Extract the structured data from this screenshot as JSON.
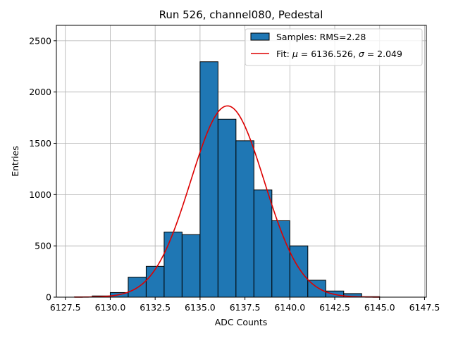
{
  "chart_data": {
    "type": "histogram",
    "title": "Run 526, channel080, Pedestal",
    "xlabel": "ADC Counts",
    "ylabel": "Entries",
    "xlim": [
      6127.0,
      6147.6
    ],
    "ylim": [
      0,
      2650
    ],
    "xticks": [
      6127.5,
      6130.0,
      6132.5,
      6135.0,
      6137.5,
      6140.0,
      6142.5,
      6145.0,
      6147.5
    ],
    "xtick_labels": [
      "6127.5",
      "6130.0",
      "6132.5",
      "6135.0",
      "6137.5",
      "6140.0",
      "6142.5",
      "6145.0",
      "6147.5"
    ],
    "yticks": [
      0,
      500,
      1000,
      1500,
      2000,
      2500
    ],
    "ytick_labels": [
      "0",
      "500",
      "1000",
      "1500",
      "2000",
      "2500"
    ],
    "grid": true,
    "legend_position": "top-right",
    "bin_edges": [
      6128.0,
      6129.0,
      6130.0,
      6131.0,
      6132.0,
      6133.0,
      6134.0,
      6135.0,
      6136.0,
      6137.0,
      6138.0,
      6139.0,
      6140.0,
      6141.0,
      6142.0,
      6143.0,
      6144.0,
      6145.0
    ],
    "counts": [
      2,
      12,
      45,
      195,
      300,
      635,
      610,
      2295,
      1735,
      1525,
      1045,
      745,
      500,
      165,
      60,
      35,
      5
    ],
    "bar_color": "#1f77b4",
    "bar_edge_color": "#000000",
    "series": [
      {
        "name": "Samples: RMS=2.28",
        "kind": "histogram"
      },
      {
        "name": "Fit: μ = 6136.526, σ = 2.049",
        "kind": "gaussian_fit",
        "mu": 6136.526,
        "sigma": 2.049,
        "amplitude": 1865,
        "x_range": [
          6128.0,
          6145.0
        ],
        "color": "#dd0000"
      }
    ],
    "legend": {
      "samples_label": "Samples: RMS=2.28",
      "fit_label_prefix": "Fit: ",
      "fit_mu_symbol": "μ",
      "fit_mu_value": " = 6136.526, ",
      "fit_sigma_symbol": "σ",
      "fit_sigma_value": " = 2.049"
    }
  }
}
